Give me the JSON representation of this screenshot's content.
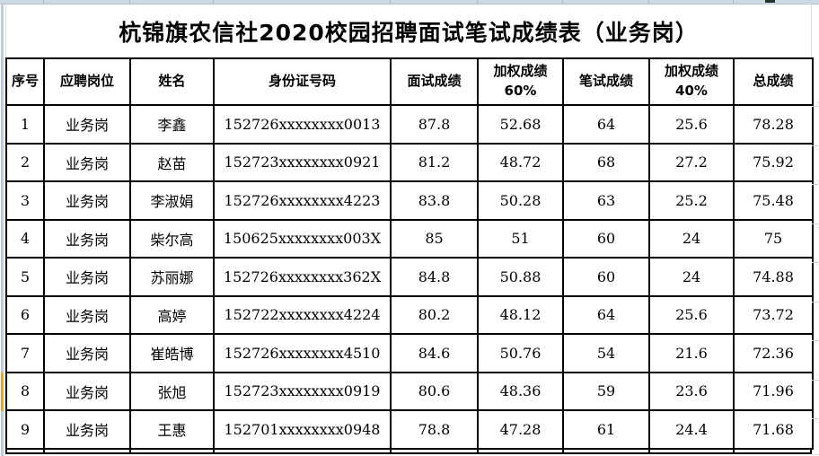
{
  "window": {
    "title_text": "杭锦旗农信社2020校园招聘面试笔试成绩表（业务岗）"
  },
  "colors": {
    "top_band": "#CCD9E5",
    "band_tick": "#A6BDD2",
    "left_strip": "#B9CDE1",
    "left_strip_selected": "#F0A23E",
    "sheet_tab_dark": "#1F3630",
    "faint_grid": "#D5DCE4",
    "table_border": "#000000"
  },
  "table": {
    "columns": [
      {
        "key": "index",
        "label": "序号"
      },
      {
        "key": "position",
        "label": "应聘岗位"
      },
      {
        "key": "name",
        "label": "姓名"
      },
      {
        "key": "id-number",
        "label": "身份证号码"
      },
      {
        "key": "interview-score",
        "label": "面试成绩"
      },
      {
        "key": "weighted-60",
        "label": "加权成绩\n60%"
      },
      {
        "key": "written-score",
        "label": "笔试成绩"
      },
      {
        "key": "weighted-40",
        "label": "加权成绩\n40%"
      },
      {
        "key": "total-score",
        "label": "总成绩"
      }
    ],
    "rows": [
      [
        "1",
        "业务岗",
        "李鑫",
        "152726xxxxxxxx0013",
        "87.8",
        "52.68",
        "64",
        "25.6",
        "78.28"
      ],
      [
        "2",
        "业务岗",
        "赵苗",
        "152723xxxxxxxx0921",
        "81.2",
        "48.72",
        "68",
        "27.2",
        "75.92"
      ],
      [
        "3",
        "业务岗",
        "李淑娟",
        "152726xxxxxxxx4223",
        "83.8",
        "50.28",
        "63",
        "25.2",
        "75.48"
      ],
      [
        "4",
        "业务岗",
        "柴尔高",
        "150625xxxxxxxx003X",
        "85",
        "51",
        "60",
        "24",
        "75"
      ],
      [
        "5",
        "业务岗",
        "苏丽娜",
        "152726xxxxxxxx362X",
        "84.8",
        "50.88",
        "60",
        "24",
        "74.88"
      ],
      [
        "6",
        "业务岗",
        "高婷",
        "152722xxxxxxxx4224",
        "80.2",
        "48.12",
        "64",
        "25.6",
        "73.72"
      ],
      [
        "7",
        "业务岗",
        "崔皓博",
        "152726xxxxxxxx4510",
        "84.6",
        "50.76",
        "54",
        "21.6",
        "72.36"
      ],
      [
        "8",
        "业务岗",
        "张旭",
        "152723xxxxxxxx0919",
        "80.6",
        "48.36",
        "59",
        "23.6",
        "71.96"
      ],
      [
        "9",
        "业务岗",
        "王惠",
        "152701xxxxxxxx0948",
        "78.8",
        "47.28",
        "61",
        "24.4",
        "71.68"
      ]
    ],
    "selected_row_number": "8"
  }
}
